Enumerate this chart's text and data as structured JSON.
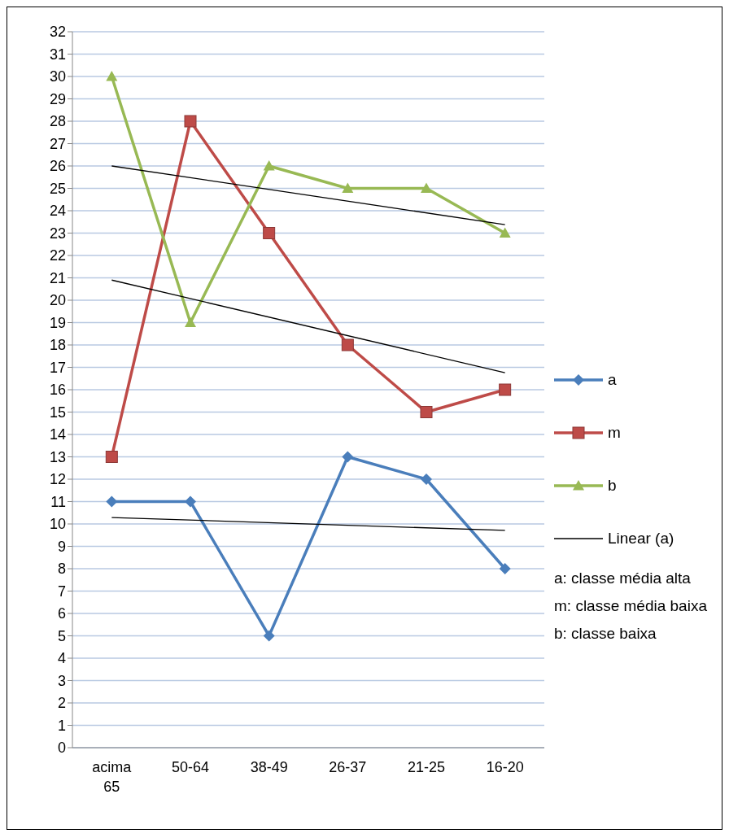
{
  "chart_data": {
    "type": "line",
    "categories": [
      "acima 65",
      "50-64",
      "38-49",
      "26-37",
      "21-25",
      "16-20"
    ],
    "series": [
      {
        "name": "a",
        "color": "#4a7ebb",
        "values": [
          11,
          11,
          5,
          13,
          12,
          8
        ],
        "marker": "diamond"
      },
      {
        "name": "m",
        "color": "#be4b48",
        "values": [
          13,
          28,
          23,
          18,
          15,
          16
        ],
        "marker": "square"
      },
      {
        "name": "b",
        "color": "#98b954",
        "values": [
          30,
          19,
          26,
          25,
          25,
          23
        ],
        "marker": "triangle"
      },
      {
        "name": "Linear (a)",
        "color": "#000000",
        "x": [
          "acima 65",
          "16-20"
        ],
        "values": [
          10.29,
          9.71
        ],
        "marker": "none"
      },
      {
        "color": "#000000",
        "x": [
          "acima 65",
          "16-20"
        ],
        "values": [
          20.9,
          16.76
        ],
        "marker": "none"
      },
      {
        "color": "#000000",
        "x": [
          "acima 65",
          "16-20"
        ],
        "values": [
          26.0,
          23.38
        ],
        "marker": "none"
      }
    ],
    "ylim": [
      0,
      32
    ],
    "yticks": [
      0,
      1,
      2,
      3,
      4,
      5,
      6,
      7,
      8,
      9,
      10,
      11,
      12,
      13,
      14,
      15,
      16,
      17,
      18,
      19,
      20,
      21,
      22,
      23,
      24,
      25,
      26,
      27,
      28,
      29,
      30,
      31,
      32
    ],
    "grid": "y",
    "legend": "right",
    "line_style": "solid",
    "annotations": [
      "a: classe média alta",
      "m: classe média baixa",
      "b: classe baixa"
    ]
  }
}
